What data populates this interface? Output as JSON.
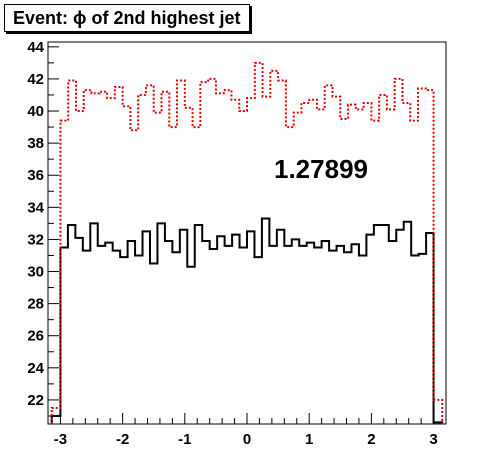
{
  "title": "Event: ϕ of 2nd highest jet",
  "annotation": "1.27899",
  "chart_data": {
    "type": "line",
    "title": "Event: ϕ of 2nd highest jet",
    "xlabel": "",
    "ylabel": "",
    "xlim": [
      -3.2,
      3.2
    ],
    "ylim": [
      20.5,
      44.3
    ],
    "grid": false,
    "legend": "none",
    "x_ticks": [
      "-3",
      "-2",
      "-1",
      "0",
      "1",
      "2",
      "3"
    ],
    "y_ticks": [
      "22",
      "24",
      "26",
      "28",
      "30",
      "32",
      "34",
      "36",
      "38",
      "40",
      "42",
      "44"
    ],
    "bin_edges": [
      -3.14,
      -3.0,
      3.0,
      3.14
    ],
    "series": [
      {
        "color": "#000000",
        "style": "solid",
        "values": [
          21.0,
          31.5,
          32.9,
          32.1,
          31.3,
          33.0,
          31.6,
          31.8,
          31.3,
          30.9,
          31.9,
          31.0,
          32.5,
          30.5,
          33.0,
          31.9,
          31.2,
          32.6,
          30.3,
          32.9,
          31.9,
          31.4,
          32.2,
          31.6,
          32.3,
          31.5,
          32.5,
          30.9,
          33.3,
          31.6,
          32.6,
          31.6,
          32.0,
          31.6,
          31.8,
          31.5,
          31.9,
          31.3,
          31.6,
          31.2,
          31.7,
          31.0,
          32.3,
          32.9,
          32.9,
          31.9,
          32.6,
          33.1,
          31.0,
          31.1,
          32.4,
          20.6
        ]
      },
      {
        "color": "#dd0000",
        "style": "dotted",
        "values": [
          21.5,
          39.4,
          41.9,
          40.0,
          41.3,
          41.1,
          41.2,
          40.8,
          41.5,
          40.3,
          38.8,
          41.0,
          41.6,
          39.9,
          41.2,
          39.0,
          41.9,
          40.2,
          39.0,
          41.8,
          42.0,
          41.1,
          41.3,
          40.7,
          40.0,
          40.8,
          43.0,
          40.9,
          42.5,
          41.9,
          39.0,
          39.9,
          40.5,
          40.7,
          40.1,
          41.6,
          40.9,
          39.5,
          40.4,
          40.1,
          40.5,
          39.4,
          41.0,
          40.1,
          42.0,
          40.5,
          39.4,
          41.4,
          41.3,
          22.0
        ]
      }
    ]
  }
}
